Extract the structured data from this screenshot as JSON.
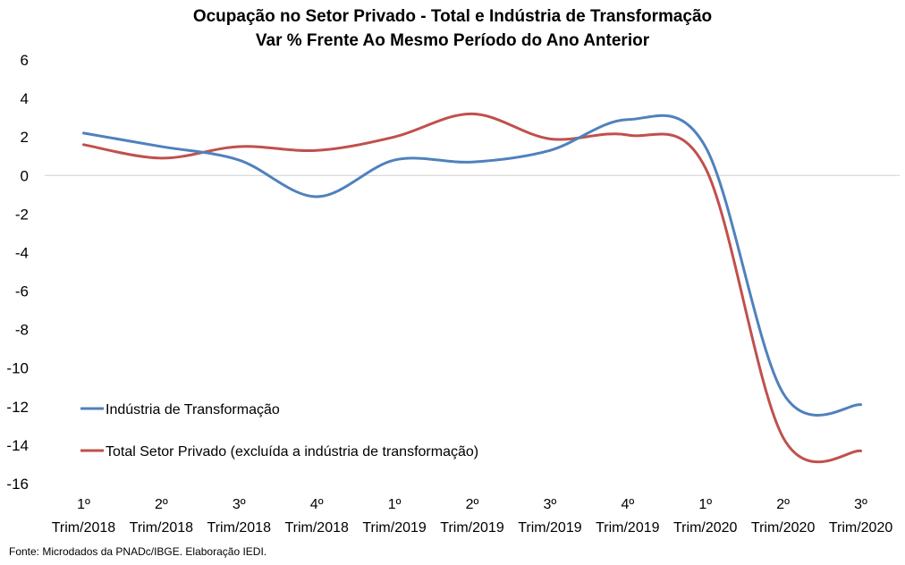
{
  "chart_data": {
    "type": "line",
    "title": "Ocupação no Setor Privado - Total e Indústria de Transformação",
    "subtitle": "Var % Frente Ao Mesmo Período do Ano Anterior",
    "xlabel": "",
    "ylabel": "",
    "ylim": [
      -16,
      6
    ],
    "yticks": [
      6,
      4,
      2,
      0,
      -2,
      -4,
      -6,
      -8,
      -10,
      -12,
      -14,
      -16
    ],
    "categories": [
      [
        "1º",
        "Trim/2018"
      ],
      [
        "2º",
        "Trim/2018"
      ],
      [
        "3º",
        "Trim/2018"
      ],
      [
        "4º",
        "Trim/2018"
      ],
      [
        "1º",
        "Trim/2019"
      ],
      [
        "2º",
        "Trim/2019"
      ],
      [
        "3º",
        "Trim/2019"
      ],
      [
        "4º",
        "Trim/2019"
      ],
      [
        "1º",
        "Trim/2020"
      ],
      [
        "2º",
        "Trim/2020"
      ],
      [
        "3º",
        "Trim/2020"
      ]
    ],
    "series": [
      {
        "name": "Indústria de Transformação",
        "color": "#4f81bd",
        "values": [
          2.2,
          1.5,
          0.8,
          -1.1,
          0.8,
          0.7,
          1.3,
          2.9,
          1.5,
          -11.3,
          -11.9
        ]
      },
      {
        "name": "Total Setor Privado (excluída a indústria de transformação)",
        "color": "#c0504d",
        "values": [
          1.6,
          0.9,
          1.5,
          1.3,
          2.0,
          3.2,
          1.9,
          2.1,
          0.4,
          -13.6,
          -14.3
        ]
      }
    ],
    "grid": false,
    "zero_line": true,
    "legend_position": "bottom-left"
  },
  "source": "Fonte: Microdados da PNADc/IBGE. Elaboração IEDI."
}
